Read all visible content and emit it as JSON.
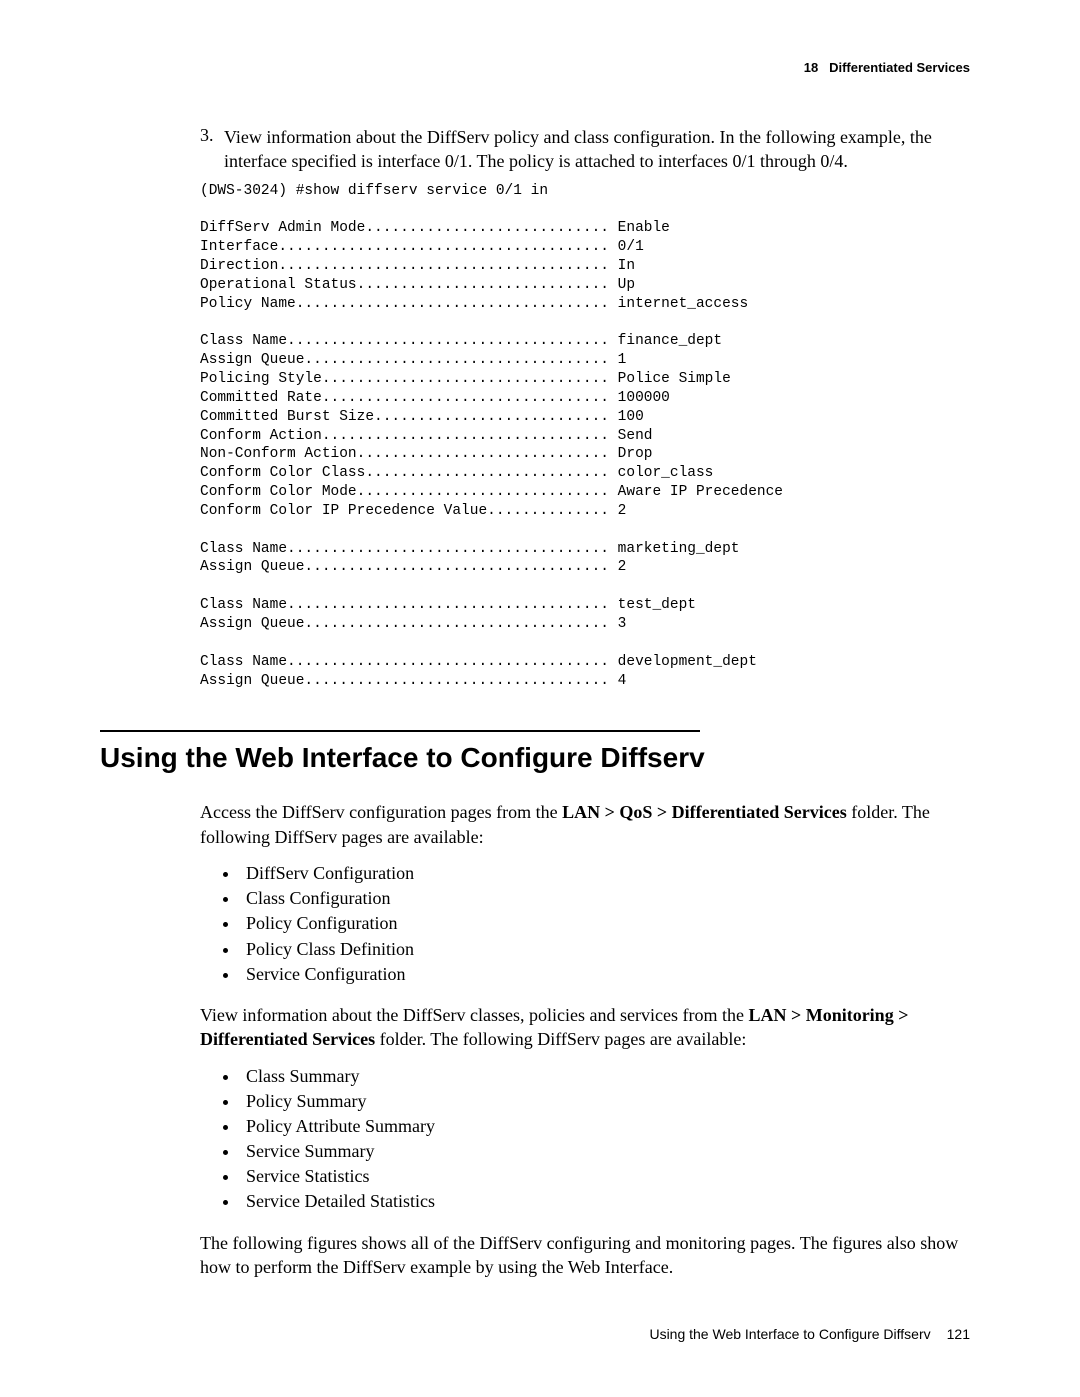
{
  "header": {
    "chapter_num": "18",
    "chapter_title": "Differentiated Services"
  },
  "step": {
    "number": "3.",
    "text": "View information about the DiffServ policy and class configuration. In the following example, the interface specified is interface 0/1. The policy is attached to interfaces 0/1 through 0/4."
  },
  "terminal": "(DWS-3024) #show diffserv service 0/1 in\n\nDiffServ Admin Mode............................ Enable\nInterface...................................... 0/1\nDirection...................................... In\nOperational Status............................. Up\nPolicy Name.................................... internet_access\n\nClass Name..................................... finance_dept\nAssign Queue................................... 1\nPolicing Style................................. Police Simple\nCommitted Rate................................. 100000\nCommitted Burst Size........................... 100\nConform Action................................. Send\nNon-Conform Action............................. Drop\nConform Color Class............................ color_class\nConform Color Mode............................. Aware IP Precedence\nConform Color IP Precedence Value.............. 2\n\nClass Name..................................... marketing_dept\nAssign Queue................................... 2\n\nClass Name..................................... test_dept\nAssign Queue................................... 3\n\nClass Name..................................... development_dept\nAssign Queue................................... 4",
  "section": {
    "heading": "Using the Web Interface to Configure Diffserv"
  },
  "para1": {
    "prefix": "Access the DiffServ configuration pages from the ",
    "bold": "LAN > QoS > Differentiated Services",
    "suffix": " folder. The following DiffServ pages are available:"
  },
  "list1": {
    "items": [
      "DiffServ Configuration",
      "Class Configuration",
      "Policy Configuration",
      "Policy Class Definition",
      "Service Configuration"
    ]
  },
  "para2": {
    "prefix": "View information about the DiffServ classes, policies and services from the ",
    "bold": "LAN > Monitoring > Differentiated Services",
    "suffix": " folder. The following DiffServ pages are available:"
  },
  "list2": {
    "items": [
      "Class Summary",
      "Policy Summary",
      "Policy Attribute Summary",
      "Service Summary",
      "Service Statistics",
      "Service Detailed Statistics"
    ]
  },
  "para3": "The following figures shows all of the DiffServ configuring and monitoring pages. The figures also show how to perform the DiffServ example by using the Web Interface.",
  "footer": {
    "text": "Using the Web Interface to Configure Diffserv",
    "page": "121"
  }
}
